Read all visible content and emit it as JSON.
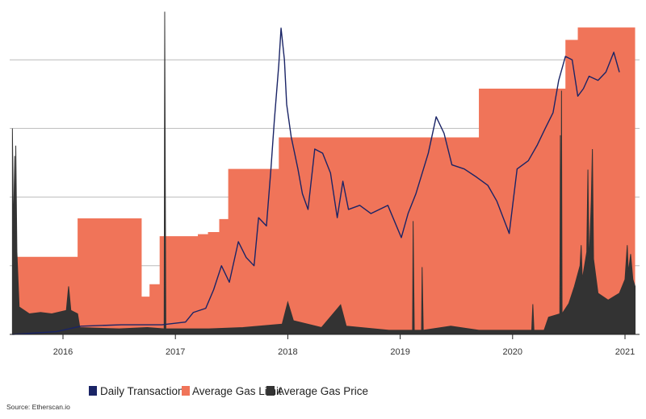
{
  "chart_data": {
    "type": "line",
    "title": "",
    "xlabel": "",
    "ylabel": "",
    "xlim": [
      2015.55,
      2021.1
    ],
    "ylim": [
      0,
      4.7
    ],
    "y_axis_labels_shown": false,
    "grid": "horizontal",
    "legend_placement": "bottom",
    "x_ticks": [
      "2016",
      "2017",
      "2018",
      "2019",
      "2020",
      "2021"
    ],
    "x_tick_values": [
      2016,
      2017,
      2018,
      2019,
      2020,
      2021
    ],
    "gridlines": [
      1,
      2,
      3,
      4
    ],
    "series": [
      {
        "name": "Average Gas Limit",
        "kind": "step-area",
        "color": "#f07459",
        "points": [
          [
            2015.57,
            1.13
          ],
          [
            2016.13,
            1.69
          ],
          [
            2016.7,
            0.55
          ],
          [
            2016.77,
            0.73
          ],
          [
            2016.86,
            1.43
          ],
          [
            2017.2,
            1.46
          ],
          [
            2017.29,
            1.49
          ],
          [
            2017.39,
            1.68
          ],
          [
            2017.47,
            2.41
          ],
          [
            2017.92,
            2.87
          ],
          [
            2019.7,
            3.58
          ],
          [
            2020.47,
            4.29
          ],
          [
            2020.58,
            4.47
          ],
          [
            2021.09,
            4.47
          ]
        ]
      },
      {
        "name": "Average Gas Price",
        "kind": "area",
        "color": "#333333",
        "points": [
          [
            2015.55,
            0
          ],
          [
            2015.55,
            3.0
          ],
          [
            2015.56,
            1.4
          ],
          [
            2015.57,
            2.6
          ],
          [
            2015.575,
            0.9
          ],
          [
            2015.58,
            2.75
          ],
          [
            2015.59,
            1.2
          ],
          [
            2015.61,
            0.4
          ],
          [
            2015.7,
            0.3
          ],
          [
            2015.8,
            0.32
          ],
          [
            2015.9,
            0.3
          ],
          [
            2016.03,
            0.35
          ],
          [
            2016.05,
            0.7
          ],
          [
            2016.07,
            0.35
          ],
          [
            2016.13,
            0.3
          ],
          [
            2016.15,
            0.1
          ],
          [
            2016.5,
            0.08
          ],
          [
            2016.75,
            0.1
          ],
          [
            2016.9,
            0.08
          ],
          [
            2016.905,
            4.7
          ],
          [
            2016.915,
            0.08
          ],
          [
            2017.3,
            0.08
          ],
          [
            2017.6,
            0.1
          ],
          [
            2017.95,
            0.15
          ],
          [
            2018.0,
            0.47
          ],
          [
            2018.05,
            0.2
          ],
          [
            2018.3,
            0.1
          ],
          [
            2018.47,
            0.43
          ],
          [
            2018.52,
            0.12
          ],
          [
            2018.9,
            0.06
          ],
          [
            2019.11,
            0.06
          ],
          [
            2019.115,
            1.65
          ],
          [
            2019.125,
            0.06
          ],
          [
            2019.19,
            0.06
          ],
          [
            2019.195,
            0.98
          ],
          [
            2019.205,
            0.06
          ],
          [
            2019.45,
            0.12
          ],
          [
            2019.7,
            0.06
          ],
          [
            2020.17,
            0.06
          ],
          [
            2020.18,
            0.44
          ],
          [
            2020.19,
            0.06
          ],
          [
            2020.28,
            0.06
          ],
          [
            2020.32,
            0.25
          ],
          [
            2020.42,
            0.3
          ],
          [
            2020.425,
            2.9
          ],
          [
            2020.43,
            0.3
          ],
          [
            2020.435,
            3.55
          ],
          [
            2020.44,
            0.3
          ],
          [
            2020.5,
            0.45
          ],
          [
            2020.55,
            0.7
          ],
          [
            2020.6,
            1.0
          ],
          [
            2020.61,
            1.3
          ],
          [
            2020.62,
            0.8
          ],
          [
            2020.66,
            1.2
          ],
          [
            2020.67,
            2.4
          ],
          [
            2020.68,
            1.0
          ],
          [
            2020.7,
            1.94
          ],
          [
            2020.71,
            2.7
          ],
          [
            2020.72,
            1.1
          ],
          [
            2020.76,
            0.6
          ],
          [
            2020.85,
            0.5
          ],
          [
            2020.95,
            0.6
          ],
          [
            2021.0,
            0.8
          ],
          [
            2021.02,
            1.3
          ],
          [
            2021.03,
            0.9
          ],
          [
            2021.05,
            1.17
          ],
          [
            2021.07,
            0.8
          ],
          [
            2021.09,
            0.7
          ],
          [
            2021.09,
            0
          ]
        ]
      },
      {
        "name": "Daily Transactions",
        "kind": "line",
        "color": "#1a2466",
        "points": [
          [
            2015.55,
            0.0
          ],
          [
            2015.94,
            0.04
          ],
          [
            2016.16,
            0.12
          ],
          [
            2016.52,
            0.14
          ],
          [
            2016.88,
            0.14
          ],
          [
            2017.09,
            0.18
          ],
          [
            2017.16,
            0.32
          ],
          [
            2017.27,
            0.38
          ],
          [
            2017.34,
            0.65
          ],
          [
            2017.41,
            1.0
          ],
          [
            2017.48,
            0.76
          ],
          [
            2017.56,
            1.35
          ],
          [
            2017.63,
            1.12
          ],
          [
            2017.7,
            1.0
          ],
          [
            2017.74,
            1.7
          ],
          [
            2017.81,
            1.58
          ],
          [
            2017.85,
            2.41
          ],
          [
            2017.88,
            3.11
          ],
          [
            2017.92,
            3.93
          ],
          [
            2017.94,
            4.46
          ],
          [
            2017.97,
            4.0
          ],
          [
            2017.99,
            3.35
          ],
          [
            2018.03,
            2.88
          ],
          [
            2018.09,
            2.41
          ],
          [
            2018.13,
            2.05
          ],
          [
            2018.18,
            1.82
          ],
          [
            2018.24,
            2.7
          ],
          [
            2018.31,
            2.64
          ],
          [
            2018.38,
            2.35
          ],
          [
            2018.44,
            1.7
          ],
          [
            2018.49,
            2.23
          ],
          [
            2018.54,
            1.82
          ],
          [
            2018.64,
            1.88
          ],
          [
            2018.74,
            1.76
          ],
          [
            2018.89,
            1.88
          ],
          [
            2019.01,
            1.41
          ],
          [
            2019.07,
            1.76
          ],
          [
            2019.14,
            2.05
          ],
          [
            2019.25,
            2.64
          ],
          [
            2019.32,
            3.17
          ],
          [
            2019.39,
            2.93
          ],
          [
            2019.46,
            2.47
          ],
          [
            2019.57,
            2.41
          ],
          [
            2019.68,
            2.29
          ],
          [
            2019.78,
            2.17
          ],
          [
            2019.86,
            1.94
          ],
          [
            2019.97,
            1.47
          ],
          [
            2020.04,
            2.41
          ],
          [
            2020.14,
            2.53
          ],
          [
            2020.22,
            2.76
          ],
          [
            2020.29,
            3.0
          ],
          [
            2020.36,
            3.23
          ],
          [
            2020.41,
            3.7
          ],
          [
            2020.47,
            4.05
          ],
          [
            2020.53,
            4.0
          ],
          [
            2020.58,
            3.47
          ],
          [
            2020.63,
            3.58
          ],
          [
            2020.68,
            3.76
          ],
          [
            2020.76,
            3.7
          ],
          [
            2020.83,
            3.82
          ],
          [
            2020.9,
            4.11
          ],
          [
            2020.95,
            3.82
          ]
        ]
      }
    ]
  },
  "legend": [
    {
      "label": "Daily Transactions",
      "color": "#1a2466"
    },
    {
      "label": "Average Gas Limit",
      "color": "#f07459"
    },
    {
      "label": "Average Gas Price",
      "color": "#333333"
    }
  ],
  "source": "Source: Etherscan.io"
}
